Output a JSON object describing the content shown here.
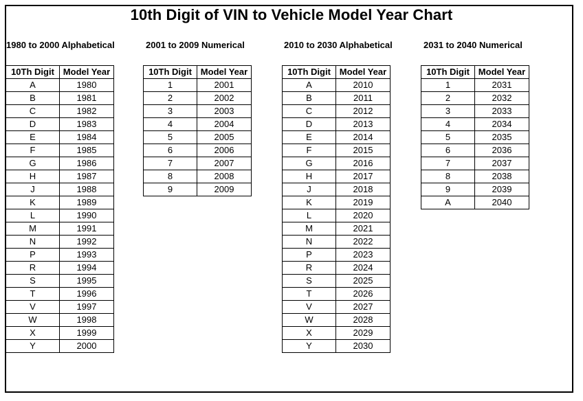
{
  "title": "10th Digit of VIN to Vehicle Model Year Chart",
  "columns": {
    "digit": "10Th Digit",
    "year": "Model Year"
  },
  "sections": [
    {
      "heading": "1980 to 2000 Alphabetical",
      "rows": [
        {
          "digit": "A",
          "year": "1980"
        },
        {
          "digit": "B",
          "year": "1981"
        },
        {
          "digit": "C",
          "year": "1982"
        },
        {
          "digit": "D",
          "year": "1983"
        },
        {
          "digit": "E",
          "year": "1984"
        },
        {
          "digit": "F",
          "year": "1985"
        },
        {
          "digit": "G",
          "year": "1986"
        },
        {
          "digit": "H",
          "year": "1987"
        },
        {
          "digit": "J",
          "year": "1988"
        },
        {
          "digit": "K",
          "year": "1989"
        },
        {
          "digit": "L",
          "year": "1990"
        },
        {
          "digit": "M",
          "year": "1991"
        },
        {
          "digit": "N",
          "year": "1992"
        },
        {
          "digit": "P",
          "year": "1993"
        },
        {
          "digit": "R",
          "year": "1994"
        },
        {
          "digit": "S",
          "year": "1995"
        },
        {
          "digit": "T",
          "year": "1996"
        },
        {
          "digit": "V",
          "year": "1997"
        },
        {
          "digit": "W",
          "year": "1998"
        },
        {
          "digit": "X",
          "year": "1999"
        },
        {
          "digit": "Y",
          "year": "2000"
        }
      ]
    },
    {
      "heading": "2001 to 2009 Numerical",
      "rows": [
        {
          "digit": "1",
          "year": "2001"
        },
        {
          "digit": "2",
          "year": "2002"
        },
        {
          "digit": "3",
          "year": "2003"
        },
        {
          "digit": "4",
          "year": "2004"
        },
        {
          "digit": "5",
          "year": "2005"
        },
        {
          "digit": "6",
          "year": "2006"
        },
        {
          "digit": "7",
          "year": "2007"
        },
        {
          "digit": "8",
          "year": "2008"
        },
        {
          "digit": "9",
          "year": "2009"
        }
      ]
    },
    {
      "heading": "2010 to 2030 Alphabetical",
      "rows": [
        {
          "digit": "A",
          "year": "2010"
        },
        {
          "digit": "B",
          "year": "2011"
        },
        {
          "digit": "C",
          "year": "2012"
        },
        {
          "digit": "D",
          "year": "2013"
        },
        {
          "digit": "E",
          "year": "2014"
        },
        {
          "digit": "F",
          "year": "2015"
        },
        {
          "digit": "G",
          "year": "2016"
        },
        {
          "digit": "H",
          "year": "2017"
        },
        {
          "digit": "J",
          "year": "2018"
        },
        {
          "digit": "K",
          "year": "2019"
        },
        {
          "digit": "L",
          "year": "2020"
        },
        {
          "digit": "M",
          "year": "2021"
        },
        {
          "digit": "N",
          "year": "2022"
        },
        {
          "digit": "P",
          "year": "2023"
        },
        {
          "digit": "R",
          "year": "2024"
        },
        {
          "digit": "S",
          "year": "2025"
        },
        {
          "digit": "T",
          "year": "2026"
        },
        {
          "digit": "V",
          "year": "2027"
        },
        {
          "digit": "W",
          "year": "2028"
        },
        {
          "digit": "X",
          "year": "2029"
        },
        {
          "digit": "Y",
          "year": "2030"
        }
      ]
    },
    {
      "heading": "2031 to 2040 Numerical",
      "rows": [
        {
          "digit": "1",
          "year": "2031"
        },
        {
          "digit": "2",
          "year": "2032"
        },
        {
          "digit": "3",
          "year": "2033"
        },
        {
          "digit": "4",
          "year": "2034"
        },
        {
          "digit": "5",
          "year": "2035"
        },
        {
          "digit": "6",
          "year": "2036"
        },
        {
          "digit": "7",
          "year": "2037"
        },
        {
          "digit": "8",
          "year": "2038"
        },
        {
          "digit": "9",
          "year": "2039"
        },
        {
          "digit": "A",
          "year": "2040"
        }
      ]
    }
  ]
}
